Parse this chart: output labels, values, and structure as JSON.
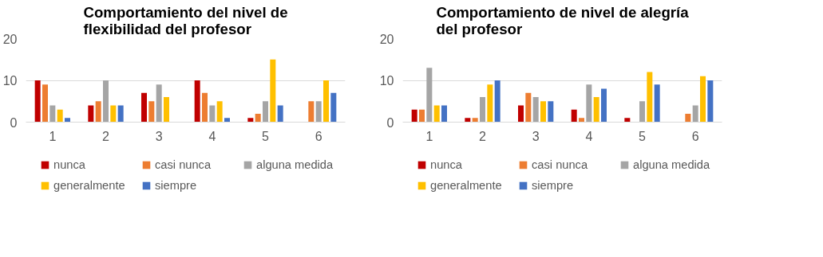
{
  "chart_data": [
    {
      "type": "bar",
      "title": "Comportamiento del nivel de flexibilidad del profesor",
      "categories": [
        "1",
        "2",
        "3",
        "4",
        "5",
        "6"
      ],
      "ylim": [
        0,
        20
      ],
      "yticks": [
        0,
        10,
        20
      ],
      "grid": "y",
      "legend": "bottom",
      "series": [
        {
          "name": "nunca",
          "color": "#c00000",
          "values": [
            10,
            4,
            7,
            10,
            1,
            0
          ]
        },
        {
          "name": "casi nunca",
          "color": "#ed7d31",
          "values": [
            9,
            5,
            5,
            7,
            2,
            5
          ]
        },
        {
          "name": "alguna medida",
          "color": "#a5a5a5",
          "values": [
            4,
            10,
            9,
            4,
            5,
            5
          ]
        },
        {
          "name": "generalmente",
          "color": "#ffc000",
          "values": [
            3,
            4,
            6,
            5,
            15,
            10
          ]
        },
        {
          "name": "siempre",
          "color": "#4472c4",
          "values": [
            1,
            4,
            0,
            1,
            4,
            7
          ]
        }
      ]
    },
    {
      "type": "bar",
      "title": "Comportamiento de nivel de alegría del profesor",
      "categories": [
        "1",
        "2",
        "3",
        "4",
        "5",
        "6"
      ],
      "ylim": [
        0,
        20
      ],
      "yticks": [
        0,
        10,
        20
      ],
      "grid": "y",
      "legend": "bottom",
      "series": [
        {
          "name": "nunca",
          "color": "#c00000",
          "values": [
            3,
            1,
            4,
            3,
            1,
            0
          ]
        },
        {
          "name": "casi nunca",
          "color": "#ed7d31",
          "values": [
            3,
            1,
            7,
            1,
            0,
            2
          ]
        },
        {
          "name": "alguna medida",
          "color": "#a5a5a5",
          "values": [
            13,
            6,
            6,
            9,
            5,
            4
          ]
        },
        {
          "name": "generalmente",
          "color": "#ffc000",
          "values": [
            4,
            9,
            5,
            6,
            12,
            11
          ]
        },
        {
          "name": "siempre",
          "color": "#4472c4",
          "values": [
            4,
            10,
            5,
            8,
            9,
            10
          ]
        }
      ]
    }
  ]
}
